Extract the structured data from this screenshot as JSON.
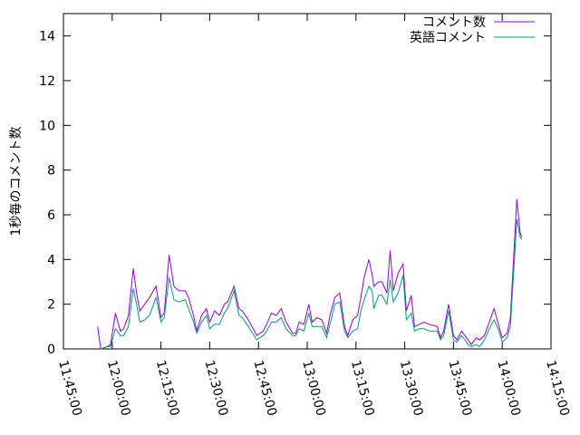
{
  "chart_data": {
    "type": "line",
    "y_label": "1秒毎のコメント数",
    "x": [
      "11:55:30",
      "11:56:30",
      "11:58:30",
      "11:59:30",
      "12:01:00",
      "12:02:30",
      "12:03:30",
      "12:05:00",
      "12:06:30",
      "12:07:30",
      "12:08:30",
      "12:10:00",
      "12:11:30",
      "12:13:30",
      "12:15:00",
      "12:16:00",
      "12:17:30",
      "12:19:00",
      "12:20:30",
      "12:22:30",
      "12:23:30",
      "12:25:00",
      "12:26:00",
      "12:27:30",
      "12:29:00",
      "12:30:00",
      "12:31:30",
      "12:33:00",
      "12:34:30",
      "12:35:30",
      "12:37:30",
      "12:39:00",
      "12:40:00",
      "12:41:30",
      "12:44:30",
      "12:46:30",
      "12:47:30",
      "12:49:00",
      "12:50:30",
      "12:52:00",
      "12:53:30",
      "12:55:30",
      "12:56:30",
      "12:57:30",
      "12:59:00",
      "13:00:30",
      "13:01:30",
      "13:03:00",
      "13:04:30",
      "13:06:00",
      "13:07:00",
      "13:08:30",
      "13:10:00",
      "13:11:30",
      "13:12:30",
      "13:14:00",
      "13:15:30",
      "13:16:30",
      "13:17:30",
      "13:19:00",
      "13:20:00",
      "13:20:30",
      "13:22:00",
      "13:23:00",
      "13:24:30",
      "13:25:30",
      "13:26:30",
      "13:28:00",
      "13:29:30",
      "13:30:30",
      "13:32:00",
      "13:33:00",
      "13:34:30",
      "13:36:00",
      "13:37:30",
      "13:40:00",
      "13:41:00",
      "13:42:00",
      "13:43:30",
      "13:45:00",
      "13:46:00",
      "13:47:30",
      "13:49:30",
      "13:50:30",
      "13:52:00",
      "13:53:00",
      "13:54:30",
      "13:56:00",
      "13:57:30",
      "13:59:00",
      "14:00:00",
      "14:01:30",
      "14:02:30",
      "14:04:30",
      "14:05:30",
      "14:06:00"
    ],
    "series": [
      {
        "name": "コメント数",
        "color": "#9400d3",
        "values": [
          1.0,
          0.0,
          0.1,
          0.2,
          1.6,
          0.8,
          0.9,
          1.5,
          3.6,
          2.5,
          1.7,
          2.0,
          2.3,
          2.8,
          1.4,
          1.6,
          4.2,
          2.8,
          2.6,
          2.6,
          2.3,
          1.5,
          0.8,
          1.5,
          1.8,
          1.2,
          1.7,
          1.5,
          2.0,
          2.1,
          2.8,
          1.8,
          1.7,
          1.4,
          0.6,
          0.8,
          1.1,
          1.6,
          1.5,
          1.8,
          1.2,
          0.7,
          0.7,
          1.2,
          1.1,
          2.0,
          1.2,
          1.4,
          1.3,
          0.7,
          1.5,
          2.3,
          2.5,
          1.0,
          0.6,
          1.3,
          1.5,
          2.3,
          3.2,
          4.0,
          3.3,
          2.8,
          3.0,
          3.0,
          2.5,
          4.4,
          2.6,
          3.4,
          3.8,
          1.7,
          2.4,
          1.0,
          1.1,
          1.2,
          1.1,
          1.0,
          0.5,
          0.8,
          2.0,
          0.6,
          0.4,
          0.8,
          0.4,
          0.2,
          0.5,
          0.4,
          0.6,
          1.2,
          1.8,
          1.0,
          0.5,
          0.7,
          1.4,
          6.7,
          5.2,
          5.0
        ]
      },
      {
        "name": "英語コメント",
        "color": "#009e73",
        "values": [
          null,
          0.0,
          0.1,
          0.1,
          0.9,
          0.6,
          0.6,
          1.0,
          2.7,
          2.0,
          1.2,
          1.3,
          1.5,
          2.3,
          1.2,
          1.4,
          3.2,
          2.2,
          2.1,
          2.2,
          1.8,
          1.2,
          0.7,
          1.2,
          1.5,
          0.9,
          1.1,
          1.1,
          1.6,
          1.8,
          2.6,
          1.5,
          1.4,
          1.1,
          0.4,
          0.6,
          0.8,
          1.2,
          1.2,
          1.4,
          0.9,
          0.6,
          0.6,
          0.9,
          0.8,
          1.6,
          1.0,
          1.0,
          1.0,
          0.5,
          1.1,
          2.0,
          2.1,
          0.8,
          0.5,
          0.8,
          0.9,
          1.7,
          2.2,
          2.8,
          2.6,
          1.8,
          2.4,
          2.4,
          2.0,
          3.1,
          2.1,
          2.5,
          3.3,
          1.3,
          1.6,
          0.8,
          0.9,
          0.9,
          0.8,
          0.8,
          0.4,
          0.6,
          1.7,
          0.4,
          0.3,
          0.6,
          0.2,
          0.1,
          0.2,
          0.1,
          0.4,
          0.9,
          1.3,
          0.8,
          0.3,
          0.5,
          1.0,
          5.8,
          5.0,
          4.9
        ]
      }
    ],
    "xlim": [
      "11:45:00",
      "14:15:00"
    ],
    "xticks": [
      "11:45:00",
      "12:00:00",
      "12:15:00",
      "12:30:00",
      "12:45:00",
      "13:00:00",
      "13:15:00",
      "13:30:00",
      "13:45:00",
      "14:00:00",
      "14:15:00"
    ],
    "ylim": [
      0,
      15
    ],
    "yticks": [
      0,
      2,
      4,
      6,
      8,
      10,
      12,
      14
    ],
    "legend": "top-right"
  }
}
